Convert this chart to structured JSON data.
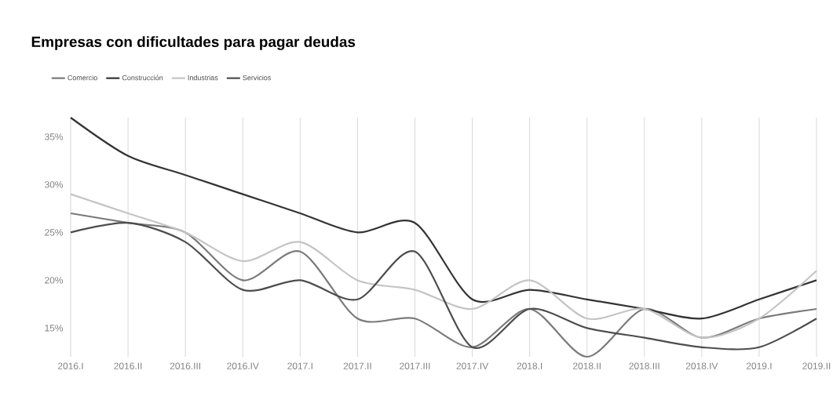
{
  "chart_data": {
    "type": "line",
    "title": "Empresas con dificultades para pagar deudas",
    "categories": [
      "2016.I",
      "2016.II",
      "2016.III",
      "2016.IV",
      "2017.I",
      "2017.II",
      "2017.III",
      "2017.IV",
      "2018.I",
      "2018.II",
      "2018.III",
      "2018.IV",
      "2019.I",
      "2019.II"
    ],
    "series": [
      {
        "name": "Comercio",
        "color": "#7a7a7a",
        "values": [
          27,
          26,
          25,
          20,
          23,
          16,
          16,
          13,
          17,
          12,
          17,
          14,
          16,
          17
        ]
      },
      {
        "name": "Construcción",
        "color": "#333333",
        "values": [
          37,
          33,
          31,
          29,
          27,
          25,
          26,
          18,
          19,
          18,
          17,
          16,
          18,
          20
        ]
      },
      {
        "name": "Industrias",
        "color": "#c4c4c4",
        "values": [
          29,
          27,
          25,
          22,
          24,
          20,
          19,
          17,
          20,
          16,
          17,
          14,
          16,
          21
        ]
      },
      {
        "name": "Servicios",
        "color": "#4d4d4d",
        "values": [
          25,
          26,
          24,
          19,
          20,
          18,
          23,
          13,
          17,
          15,
          14,
          13,
          13,
          16
        ]
      }
    ],
    "ylim": [
      12,
      37
    ],
    "yticks": [
      {
        "value": 15,
        "label": "15%"
      },
      {
        "value": 20,
        "label": "20%"
      },
      {
        "value": 25,
        "label": "25%"
      },
      {
        "value": 30,
        "label": "30%"
      },
      {
        "value": 35,
        "label": "35%"
      }
    ],
    "grid": "x",
    "legend": "top left"
  }
}
